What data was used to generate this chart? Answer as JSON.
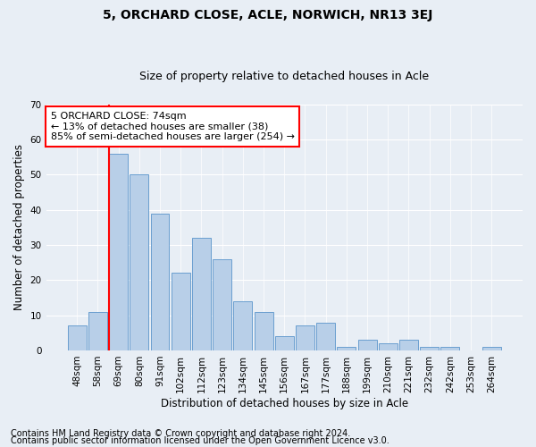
{
  "title": "5, ORCHARD CLOSE, ACLE, NORWICH, NR13 3EJ",
  "subtitle": "Size of property relative to detached houses in Acle",
  "xlabel": "Distribution of detached houses by size in Acle",
  "ylabel": "Number of detached properties",
  "bar_labels": [
    "48sqm",
    "58sqm",
    "69sqm",
    "80sqm",
    "91sqm",
    "102sqm",
    "112sqm",
    "123sqm",
    "134sqm",
    "145sqm",
    "156sqm",
    "167sqm",
    "177sqm",
    "188sqm",
    "199sqm",
    "210sqm",
    "221sqm",
    "232sqm",
    "242sqm",
    "253sqm",
    "264sqm"
  ],
  "bar_values": [
    7,
    11,
    56,
    50,
    39,
    22,
    32,
    26,
    14,
    11,
    4,
    7,
    8,
    1,
    3,
    2,
    3,
    1,
    1,
    0,
    1
  ],
  "bar_color": "#b8cfe8",
  "bar_edge_color": "#6a9fd0",
  "property_line_color": "red",
  "annotation_text": "5 ORCHARD CLOSE: 74sqm\n← 13% of detached houses are smaller (38)\n85% of semi-detached houses are larger (254) →",
  "annotation_box_color": "white",
  "annotation_box_edge_color": "red",
  "ylim": [
    0,
    70
  ],
  "yticks": [
    0,
    10,
    20,
    30,
    40,
    50,
    60,
    70
  ],
  "background_color": "#e8eef5",
  "footnote1": "Contains HM Land Registry data © Crown copyright and database right 2024.",
  "footnote2": "Contains public sector information licensed under the Open Government Licence v3.0.",
  "title_fontsize": 10,
  "subtitle_fontsize": 9,
  "xlabel_fontsize": 8.5,
  "ylabel_fontsize": 8.5,
  "tick_fontsize": 7.5,
  "annotation_fontsize": 8,
  "footnote_fontsize": 7
}
